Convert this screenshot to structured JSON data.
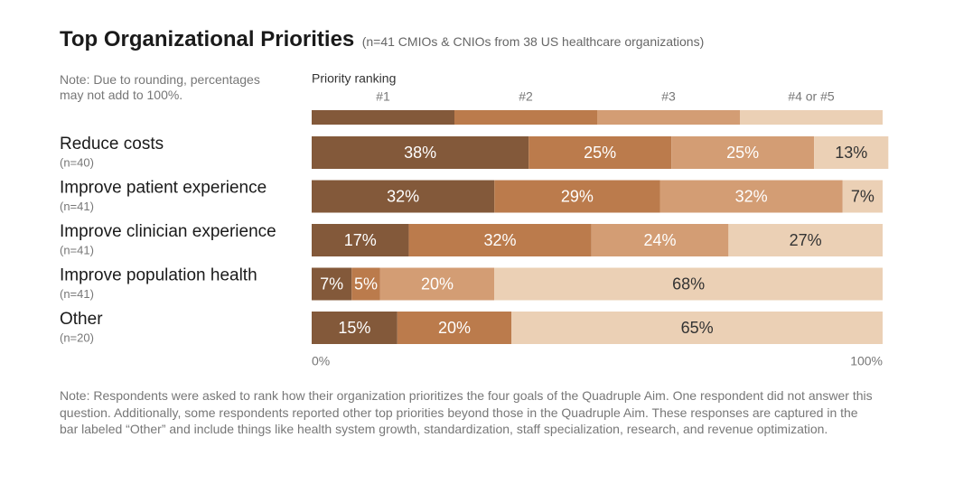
{
  "chart_data": {
    "type": "stacked_bar",
    "orientation": "horizontal",
    "title": "Top Organizational Priorities",
    "subtitle": "(n=41 CMIOs & CNIOs from 38 US healthcare organizations)",
    "note": "Note: Due to rounding, percentages may not add to 100%.",
    "legend_title": "Priority ranking",
    "categories": [
      "Reduce costs",
      "Improve patient experience",
      "Improve clinician experience",
      "Improve population health",
      "Other"
    ],
    "sublabels": [
      "(n=40)",
      "(n=41)",
      "(n=41)",
      "(n=41)",
      "(n=20)"
    ],
    "series": [
      {
        "name": "#1",
        "color": "#83593a",
        "label_color": "#ffffff",
        "values": [
          38,
          32,
          17,
          7,
          15
        ],
        "value_labels": [
          "38%",
          "32%",
          "17%",
          "7%",
          "15%"
        ]
      },
      {
        "name": "#2",
        "color": "#bb7b4c",
        "label_color": "#ffffff",
        "values": [
          25,
          29,
          32,
          5,
          20
        ],
        "value_labels": [
          "25%",
          "29%",
          "32%",
          "5%",
          "20%"
        ]
      },
      {
        "name": "#3",
        "color": "#d39d74",
        "label_color": "#ffffff",
        "values": [
          25,
          32,
          24,
          20,
          null
        ],
        "value_labels": [
          "25%",
          "32%",
          "24%",
          "20%",
          null
        ]
      },
      {
        "name": "#4 or #5",
        "color": "#ebd0b5",
        "label_color": "#333333",
        "values": [
          13,
          7,
          27,
          68,
          65
        ],
        "value_labels": [
          "13%",
          "7%",
          "27%",
          "68%",
          "65%"
        ]
      }
    ],
    "xlim": [
      0,
      100
    ],
    "xticks": [
      {
        "value": 0,
        "label": "0%"
      },
      {
        "value": 100,
        "label": "100%"
      }
    ],
    "footnote": "Note: Respondents were asked to rank how their organization prioritizes the four goals of the Quadruple Aim. One respondent did not answer this question. Additionally, some respondents reported other top priorities beyond those in the Quadruple Aim. These responses are captured in the bar labeled “Other” and include things like health system growth, standardization, staff specialization, research, and revenue optimization."
  }
}
